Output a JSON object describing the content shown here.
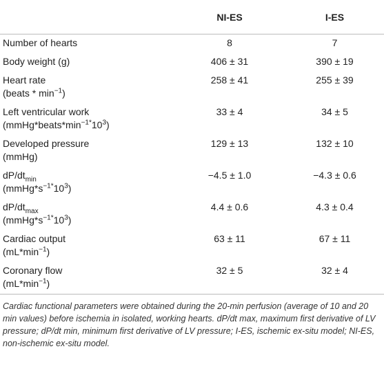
{
  "table": {
    "header": {
      "col1": "NI-ES",
      "col2": "I-ES"
    },
    "rows": [
      {
        "label": [
          [
            "Number of hearts"
          ]
        ],
        "ni_es": "8",
        "i_es": "7"
      },
      {
        "label": [
          [
            "Body weight (g)"
          ]
        ],
        "ni_es": "406 ± 31",
        "i_es": "390 ± 19"
      },
      {
        "label": [
          [
            "Heart rate"
          ],
          [
            "(beats * min",
            {
              "sup": "−1"
            },
            ")"
          ]
        ],
        "ni_es": "258 ± 41",
        "i_es": "255 ± 39"
      },
      {
        "label": [
          [
            "Left ventricular work"
          ],
          [
            "(mmHg*beats*min",
            {
              "sup": "−1*"
            },
            "10",
            {
              "sup": "3"
            },
            ")"
          ]
        ],
        "ni_es": "33 ± 4",
        "i_es": "34 ± 5"
      },
      {
        "label": [
          [
            "Developed pressure"
          ],
          [
            "(mmHg)"
          ]
        ],
        "ni_es": "129 ± 13",
        "i_es": "132 ± 10"
      },
      {
        "label": [
          [
            "dP/dt",
            {
              "sub": "min"
            }
          ],
          [
            "(mmHg*s",
            {
              "sup": "−1*"
            },
            "10",
            {
              "sup": "3"
            },
            ")"
          ]
        ],
        "ni_es": "−4.5 ± 1.0",
        "i_es": "−4.3 ± 0.6"
      },
      {
        "label": [
          [
            "dP/dt",
            {
              "sub": "max"
            }
          ],
          [
            "(mmHg*s",
            {
              "sup": "−1*"
            },
            "10",
            {
              "sup": "3"
            },
            ")"
          ]
        ],
        "ni_es": "4.4 ± 0.6",
        "i_es": "4.3 ± 0.4"
      },
      {
        "label": [
          [
            "Cardiac output"
          ],
          [
            "(mL*min",
            {
              "sup": "−1"
            },
            ")"
          ]
        ],
        "ni_es": "63 ± 11",
        "i_es": "67 ± 11"
      },
      {
        "label": [
          [
            "Coronary flow"
          ],
          [
            "(mL*min",
            {
              "sup": "−1"
            },
            ")"
          ]
        ],
        "ni_es": "32 ± 5",
        "i_es": "32 ± 4"
      }
    ],
    "caption": "Cardiac functional parameters were obtained during the 20-min perfusion (average of 10 and 20 min values) before ischemia in isolated, working hearts. dP/dt max, maximum first derivative of LV pressure; dP/dt min, minimum first derivative of LV pressure; I-ES, ischemic ex-situ model; NI-ES, non-ischemic ex-situ model."
  }
}
